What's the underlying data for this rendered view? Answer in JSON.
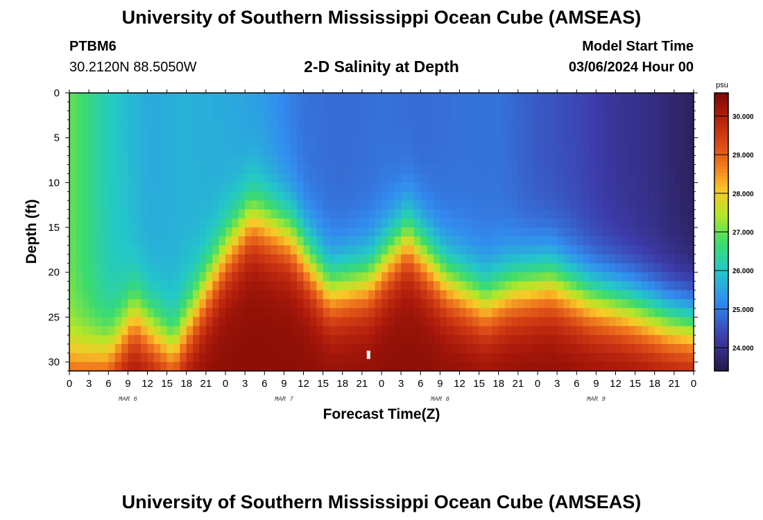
{
  "header": {
    "title": "University of Southern Mississippi Ocean Cube (AMSEAS)",
    "station_id": "PTBM6",
    "coordinates": "30.2120N  88.5050W",
    "subtitle": "2-D Salinity at Depth",
    "model_start_label": "Model Start Time",
    "model_start_value": "03/06/2024 Hour 00"
  },
  "footer": {
    "title": "University of Southern Mississippi Ocean Cube (AMSEAS)"
  },
  "chart_data": {
    "type": "heatmap",
    "title": "2-D Salinity at Depth",
    "xlabel": "Forecast Time(Z)",
    "ylabel": "Depth (ft)",
    "x_tick_labels": [
      "0",
      "3",
      "6",
      "9",
      "12",
      "15",
      "18",
      "21",
      "0",
      "3",
      "6",
      "9",
      "12",
      "15",
      "18",
      "21",
      "0",
      "3",
      "6",
      "9",
      "12",
      "15",
      "18",
      "21",
      "0",
      "3",
      "6",
      "9",
      "12",
      "15",
      "18",
      "21",
      "0"
    ],
    "x_range_hours": [
      0,
      96
    ],
    "date_labels": [
      {
        "label": "MAR 6",
        "hour": 9
      },
      {
        "label": "MAR 7",
        "hour": 33
      },
      {
        "label": "MAR 8",
        "hour": 57
      },
      {
        "label": "MAR 9",
        "hour": 81
      }
    ],
    "y_ticks": [
      0,
      5,
      10,
      15,
      20,
      25,
      30
    ],
    "ylim": [
      0,
      31
    ],
    "colorbar": {
      "unit": "psu",
      "ticks": [
        "30.000",
        "29.000",
        "28.000",
        "27.000",
        "26.000",
        "25.000",
        "24.000"
      ],
      "range": [
        23.4,
        30.6
      ]
    },
    "surface_salinity_profile": {
      "hours": [
        0,
        6,
        12,
        18,
        24,
        30,
        36,
        42,
        48,
        54,
        60,
        66,
        72,
        78,
        84,
        90,
        96
      ],
      "values": [
        27.0,
        26.1,
        25.6,
        25.7,
        25.6,
        25.4,
        24.9,
        24.8,
        24.9,
        24.8,
        24.9,
        24.9,
        24.6,
        24.4,
        24.1,
        23.9,
        23.6
      ]
    },
    "deep_salinity": 30.4,
    "halocline_depth_ft": {
      "hours": [
        0,
        6,
        10,
        16,
        24,
        28,
        34,
        40,
        46,
        52,
        58,
        64,
        68,
        74,
        80,
        86,
        92,
        96
      ],
      "values": [
        30.5,
        29.5,
        25,
        29,
        18,
        14,
        16,
        22,
        21,
        16,
        21,
        23.5,
        22,
        21,
        23,
        24,
        25.5,
        26
      ]
    },
    "marker": {
      "hour": 46,
      "depth_ft": 29.2
    }
  }
}
